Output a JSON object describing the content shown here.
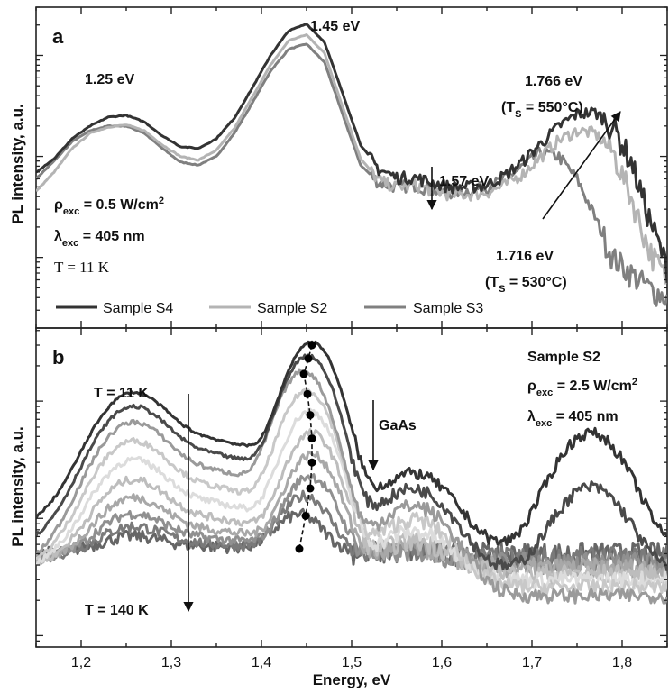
{
  "chart_data": [
    {
      "type": "line",
      "panel_letter": "a",
      "ylabel": "PL intensity, a.u.",
      "xlim": [
        1.15,
        1.85
      ],
      "y_scale": "log",
      "legend_placement": "bottom-left",
      "annotations": {
        "peak1": "1.25 eV",
        "peak2": "1.45 eV",
        "peak3": "1.57 eV",
        "peak4_hi": "1.766 eV",
        "peak4_hi_cond": "(TS = 550°C)",
        "peak4_lo": "1.716 eV",
        "peak4_lo_cond": "(TS = 530°C)",
        "rho": "ρexc = 0.5 W/cm2",
        "lambda": "λexc = 405 nm",
        "temp": "T = 11 K"
      },
      "series": [
        {
          "name": "Sample S4",
          "color": "#333333",
          "x": [
            1.15,
            1.17,
            1.19,
            1.21,
            1.23,
            1.25,
            1.27,
            1.29,
            1.31,
            1.33,
            1.35,
            1.37,
            1.39,
            1.41,
            1.43,
            1.45,
            1.47,
            1.49,
            1.51,
            1.53,
            1.55,
            1.57,
            1.59,
            1.61,
            1.63,
            1.65,
            1.67,
            1.69,
            1.71,
            1.73,
            1.75,
            1.77,
            1.79,
            1.81,
            1.83,
            1.85
          ],
          "y": [
            70,
            95,
            150,
            200,
            245,
            255,
            220,
            160,
            125,
            120,
            150,
            240,
            480,
            1000,
            1750,
            2050,
            1350,
            420,
            130,
            75,
            62,
            62,
            55,
            50,
            50,
            52,
            65,
            90,
            135,
            200,
            265,
            275,
            200,
            90,
            25,
            8
          ]
        },
        {
          "name": "Sample S2",
          "color": "#b4b4b4",
          "x": [
            1.15,
            1.17,
            1.19,
            1.21,
            1.23,
            1.25,
            1.27,
            1.29,
            1.31,
            1.33,
            1.35,
            1.37,
            1.39,
            1.41,
            1.43,
            1.45,
            1.47,
            1.49,
            1.51,
            1.53,
            1.55,
            1.57,
            1.59,
            1.61,
            1.63,
            1.65,
            1.67,
            1.69,
            1.71,
            1.73,
            1.75,
            1.77,
            1.79,
            1.81,
            1.83,
            1.85
          ],
          "y": [
            45,
            70,
            120,
            170,
            195,
            205,
            180,
            130,
            100,
            92,
            115,
            190,
            390,
            800,
            1400,
            1600,
            1050,
            310,
            95,
            58,
            50,
            52,
            46,
            42,
            42,
            44,
            52,
            68,
            100,
            145,
            180,
            170,
            110,
            40,
            12,
            6
          ]
        },
        {
          "name": "Sample S3",
          "color": "#808080",
          "x": [
            1.15,
            1.17,
            1.19,
            1.21,
            1.23,
            1.25,
            1.27,
            1.29,
            1.31,
            1.33,
            1.35,
            1.37,
            1.39,
            1.41,
            1.43,
            1.45,
            1.47,
            1.49,
            1.51,
            1.53,
            1.55,
            1.57,
            1.59,
            1.61,
            1.63,
            1.65,
            1.67,
            1.69,
            1.71,
            1.73,
            1.75,
            1.77,
            1.79,
            1.81,
            1.83,
            1.85
          ],
          "y": [
            60,
            90,
            140,
            180,
            200,
            200,
            170,
            120,
            88,
            82,
            100,
            170,
            340,
            700,
            1150,
            1300,
            850,
            260,
            82,
            55,
            50,
            52,
            46,
            44,
            46,
            50,
            60,
            80,
            110,
            100,
            60,
            25,
            10,
            7,
            5,
            4
          ]
        }
      ]
    },
    {
      "type": "line",
      "panel_letter": "b",
      "ylabel": "PL intensity, a.u.",
      "xlabel": "Energy, eV",
      "xlim": [
        1.15,
        1.85
      ],
      "x_ticks": [
        "1,2",
        "1,3",
        "1,4",
        "1,5",
        "1,6",
        "1,7",
        "1,8"
      ],
      "y_scale": "log",
      "annotations": {
        "sample": "Sample S2",
        "rho": "ρexc = 2.5 W/cm2",
        "lambda": "λexc = 405 nm",
        "t_low": "T = 11 K",
        "t_high": "T = 140 K",
        "gaas": "GaAs"
      },
      "temperature_series_colors": [
        "#333333",
        "#4a4a4a",
        "#9a9a9a",
        "#c8c8c8",
        "#dcdcdc",
        "#bdbdbd",
        "#a8a8a8",
        "#909090",
        "#7a7a7a",
        "#666666"
      ],
      "peak_markers": {
        "x": [
          1.456,
          1.452,
          1.447,
          1.451,
          1.454,
          1.456,
          1.456,
          1.454,
          1.449,
          1.442
        ],
        "y": [
          3000,
          2300,
          1700,
          1150,
          760,
          480,
          300,
          180,
          105,
          55
        ]
      }
    }
  ]
}
